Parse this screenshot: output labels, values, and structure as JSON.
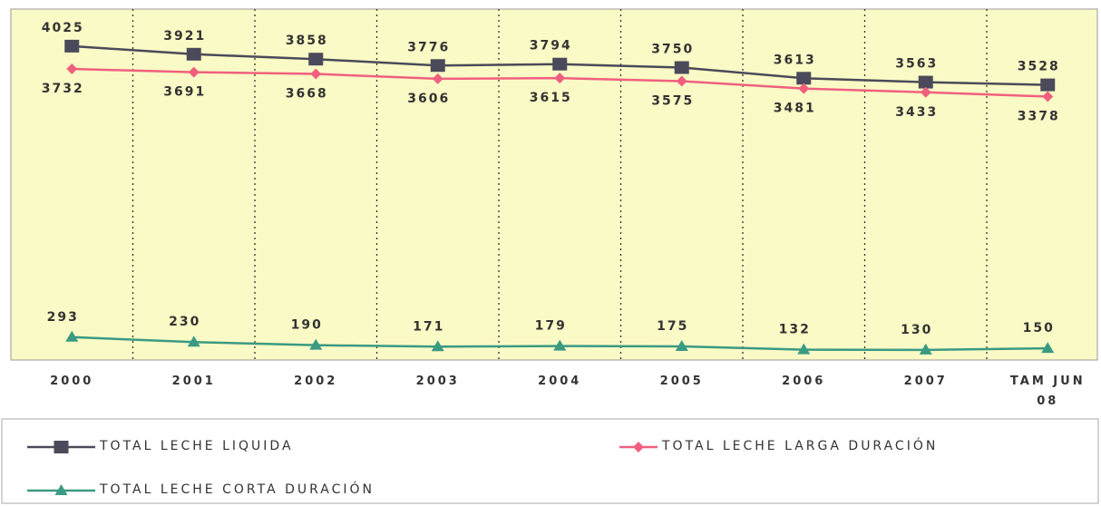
{
  "chart_data": {
    "type": "line",
    "categories": [
      "2000",
      "2001",
      "2002",
      "2003",
      "2004",
      "2005",
      "2006",
      "2007",
      "TAM JUN 08"
    ],
    "series": [
      {
        "name": "TOTAL LECHE LIQUIDA",
        "color": "#4a4a5a",
        "marker": "square",
        "values": [
          4025,
          3921,
          3858,
          3776,
          3794,
          3750,
          3613,
          3563,
          3528
        ]
      },
      {
        "name": "TOTAL LECHE LARGA DURACIÓN",
        "color": "#f0607e",
        "marker": "diamond",
        "values": [
          3732,
          3691,
          3668,
          3606,
          3615,
          3575,
          3481,
          3433,
          3378
        ]
      },
      {
        "name": "TOTAL LECHE CORTA DURACIÓN",
        "color": "#3a9a82",
        "marker": "triangle",
        "values": [
          293,
          230,
          190,
          171,
          179,
          175,
          132,
          130,
          150
        ]
      }
    ],
    "ylim": [
      0,
      4500
    ],
    "legend": "bottom"
  }
}
